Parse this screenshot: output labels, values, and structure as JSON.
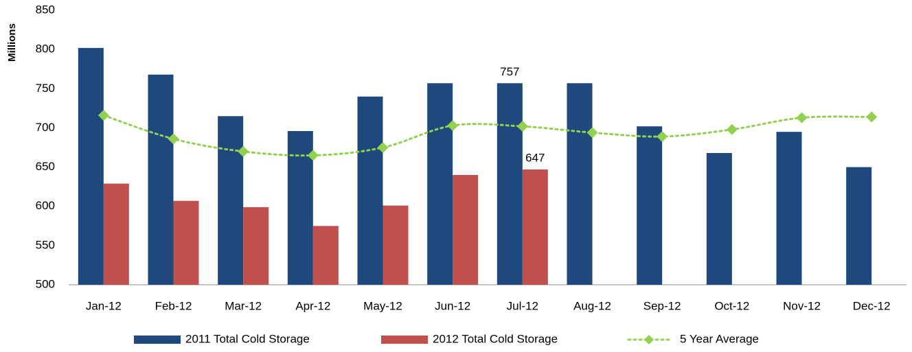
{
  "chart_data": {
    "type": "bar",
    "y_label": "Millions",
    "categories": [
      "Jan-12",
      "Feb-12",
      "Mar-12",
      "Apr-12",
      "May-12",
      "Jun-12",
      "Jul-12",
      "Aug-12",
      "Sep-12",
      "Oct-12",
      "Nov-12",
      "Dec-12"
    ],
    "series": [
      {
        "name": "2011 Total Cold Storage",
        "type": "bar",
        "color": "#1f497d",
        "values": [
          802,
          768,
          715,
          696,
          740,
          757,
          757,
          757,
          702,
          668,
          695,
          650
        ],
        "value_labels": [
          null,
          null,
          null,
          null,
          null,
          null,
          "757",
          null,
          null,
          null,
          null,
          null
        ]
      },
      {
        "name": "2012 Total Cold Storage",
        "type": "bar",
        "color": "#c0504d",
        "values": [
          629,
          607,
          599,
          575,
          601,
          640,
          647,
          null,
          null,
          null,
          null,
          null
        ],
        "value_labels": [
          null,
          null,
          null,
          null,
          null,
          null,
          "647",
          null,
          null,
          null,
          null,
          null
        ]
      },
      {
        "name": "5 Year Average",
        "type": "line",
        "color": "#92d050",
        "values": [
          716,
          686,
          670,
          665,
          675,
          703,
          702,
          694,
          689,
          698,
          713,
          714
        ]
      }
    ],
    "ylim": [
      500,
      850
    ],
    "yticks": [
      500,
      550,
      600,
      650,
      700,
      750,
      800,
      850
    ],
    "grid": false,
    "legend": "bottom"
  }
}
